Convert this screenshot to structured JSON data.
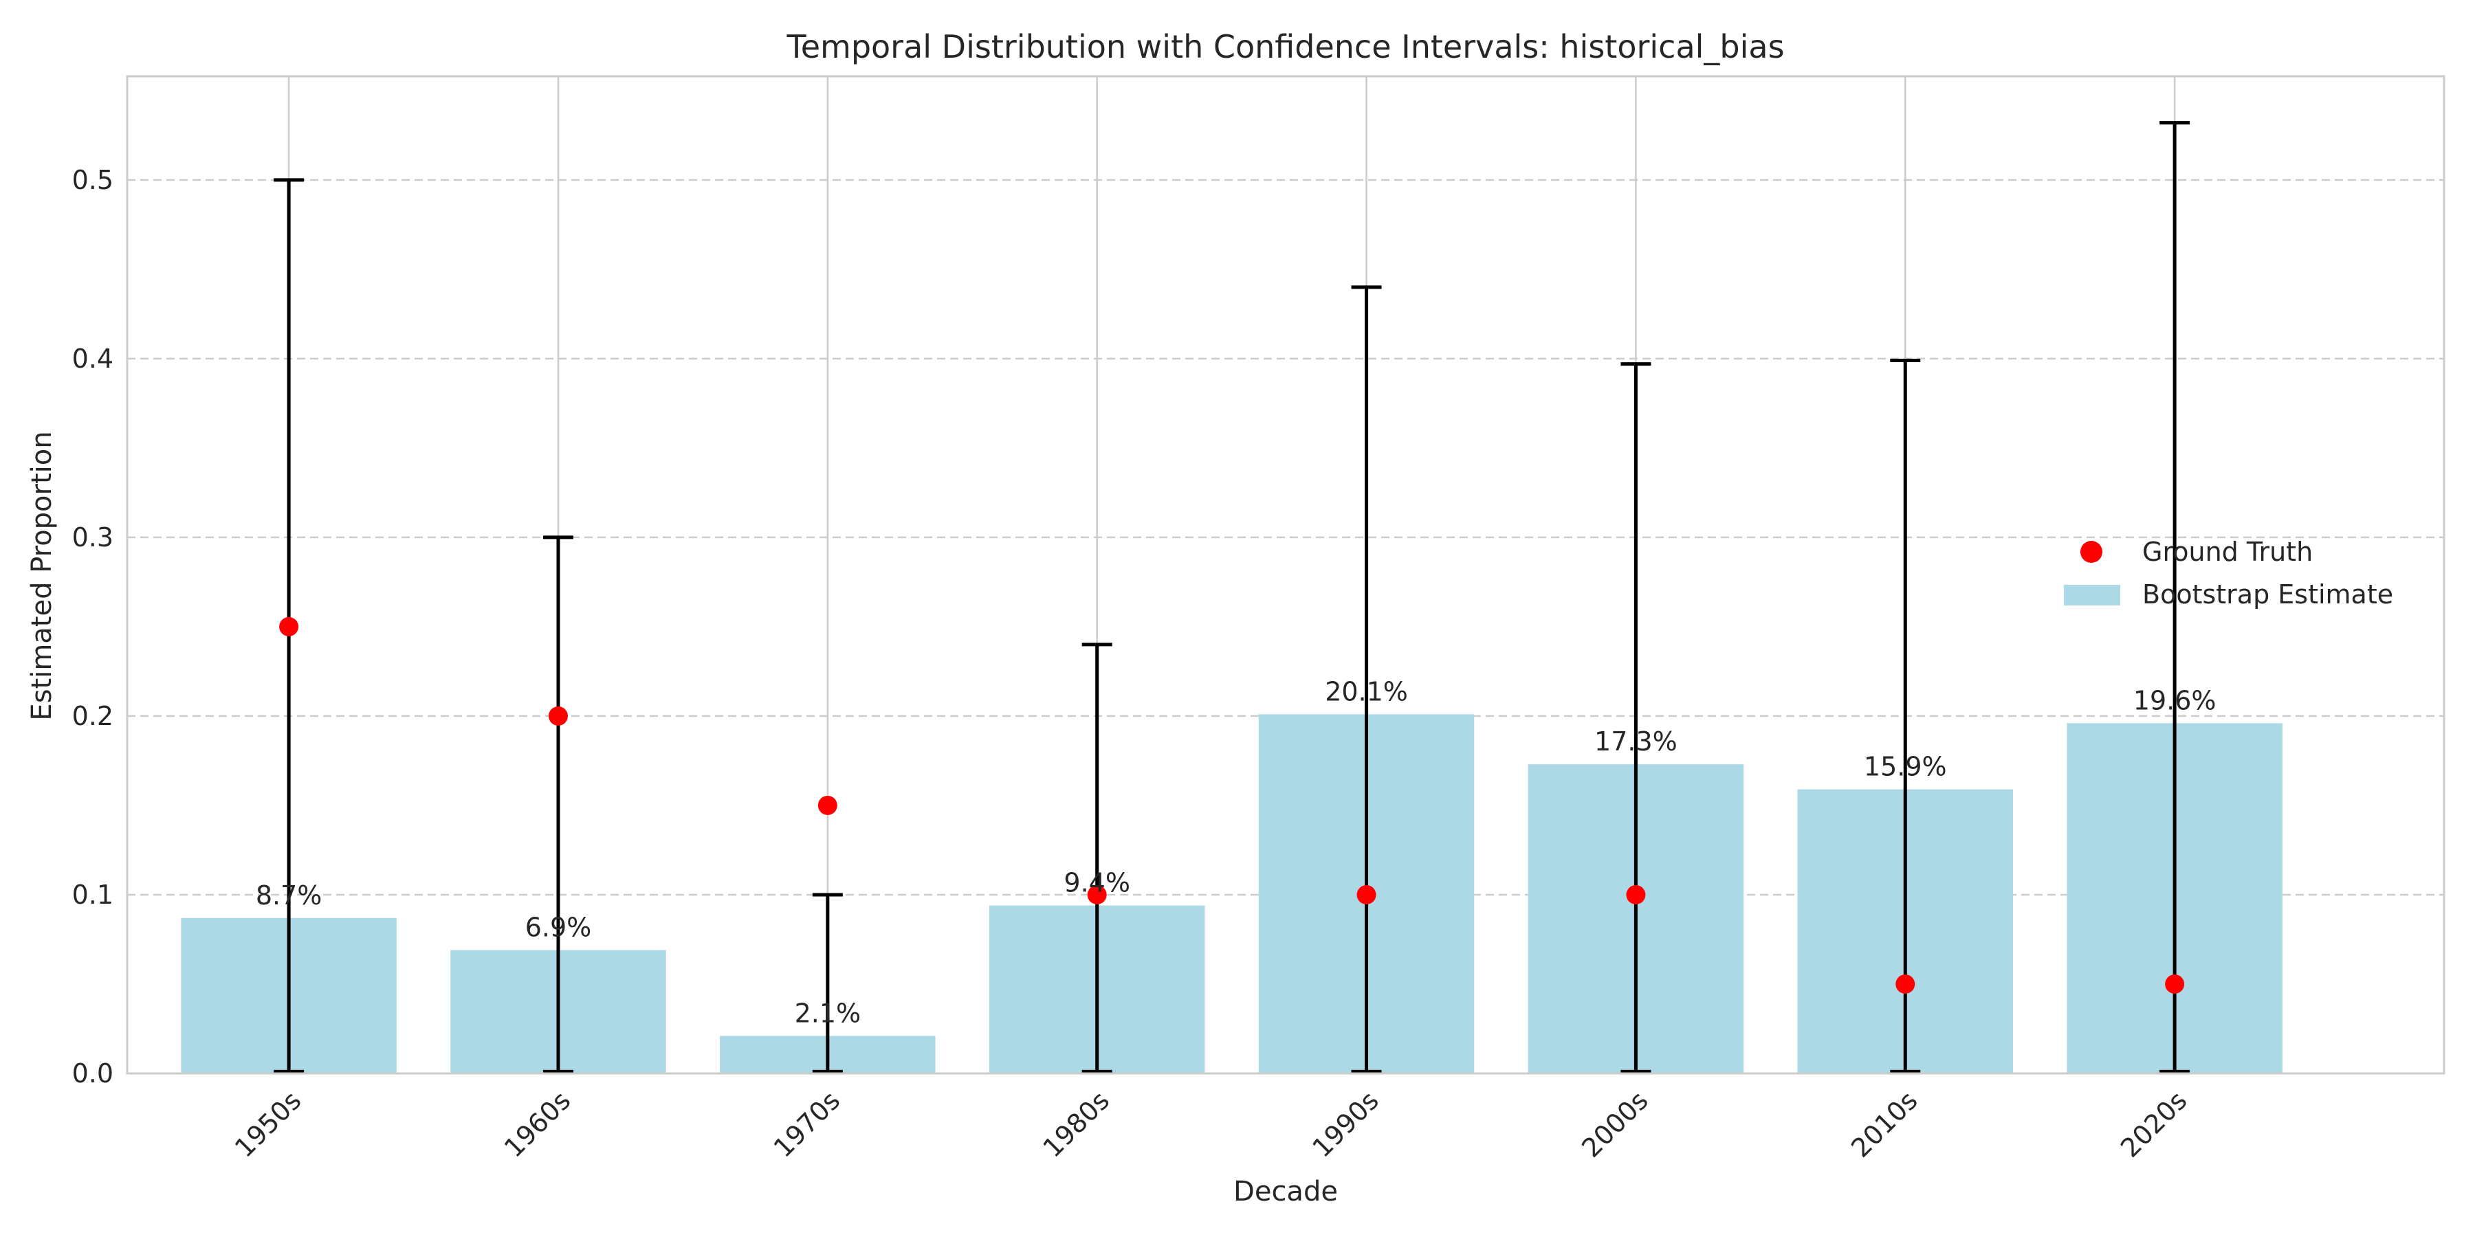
{
  "chart_data": {
    "type": "bar",
    "title": "Temporal Distribution with Confidence Intervals: historical_bias",
    "xlabel": "Decade",
    "ylabel": "Estimated Proportion",
    "categories": [
      "1950s",
      "1960s",
      "1970s",
      "1980s",
      "1990s",
      "2000s",
      "2010s",
      "2020s"
    ],
    "series": [
      {
        "name": "Bootstrap Estimate",
        "type": "bar",
        "values": [
          0.087,
          0.069,
          0.021,
          0.094,
          0.201,
          0.173,
          0.159,
          0.196
        ],
        "labels": [
          "8.7%",
          "6.9%",
          "2.1%",
          "9.4%",
          "20.1%",
          "17.3%",
          "15.9%",
          "19.6%"
        ],
        "ci_lower": [
          0.001,
          0.001,
          0.001,
          0.001,
          0.001,
          0.001,
          0.001,
          0.001
        ],
        "ci_upper": [
          0.5,
          0.3,
          0.1,
          0.24,
          0.44,
          0.397,
          0.399,
          0.532
        ],
        "color": "#add8e6"
      },
      {
        "name": "Ground Truth",
        "type": "scatter",
        "values": [
          0.25,
          0.2,
          0.15,
          0.1,
          0.1,
          0.1,
          0.05,
          0.05
        ],
        "color": "#ff0000"
      }
    ],
    "ylim": [
      0,
      0.558
    ],
    "yticks": [
      0.0,
      0.1,
      0.2,
      0.3,
      0.4,
      0.5
    ],
    "ytick_labels": [
      "0.0",
      "0.1",
      "0.2",
      "0.3",
      "0.4",
      "0.5"
    ],
    "grid": true,
    "legend_position": "right",
    "colors": {
      "bar": "#add8e6",
      "point": "#ff0000",
      "errorbar": "#000000",
      "grid": "#cccccc",
      "frame": "#cccccc"
    }
  }
}
